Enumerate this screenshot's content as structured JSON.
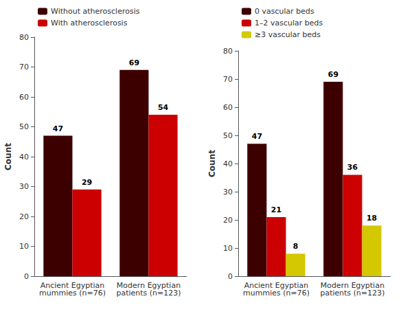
{
  "chart_data": [
    {
      "type": "bar",
      "categories": [
        "Ancient Egyptian\nmummies (n=76)",
        "Modern Egyptian\npatients (n=123)"
      ],
      "series": [
        {
          "name": "Without atherosclerosis",
          "color": "#3d0000",
          "values": [
            47,
            69
          ]
        },
        {
          "name": "With atherosclerosis",
          "color": "#cc0000",
          "values": [
            29,
            54
          ]
        }
      ],
      "ylabel": "Count",
      "ylim": [
        0,
        80
      ],
      "yticks": [
        0,
        10,
        20,
        30,
        40,
        50,
        60,
        70,
        80
      ],
      "data_labels": true,
      "legend": "upper left",
      "grid": false
    },
    {
      "type": "bar",
      "categories": [
        "Ancient Egyptian\nmummies (n=76)",
        "Modern Egyptian\npatients (n=123)"
      ],
      "series": [
        {
          "name": "0 vascular beds",
          "color": "#3d0000",
          "values": [
            47,
            69
          ]
        },
        {
          "name": "1–2 vascular beds",
          "color": "#cc0000",
          "values": [
            21,
            36
          ]
        },
        {
          "name": "≥3 vascular beds",
          "color": "#d4c800",
          "values": [
            8,
            18
          ]
        }
      ],
      "ylabel": "Count",
      "ylim": [
        0,
        80
      ],
      "yticks": [
        0,
        10,
        20,
        30,
        40,
        50,
        60,
        70,
        80
      ],
      "data_labels": true,
      "legend": "upper left",
      "grid": false
    }
  ]
}
